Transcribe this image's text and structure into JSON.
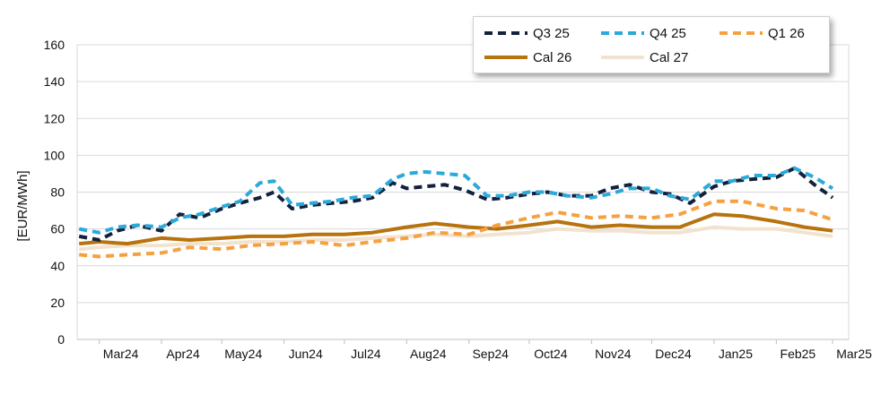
{
  "chart_data": {
    "type": "line",
    "title": "",
    "xlabel": "",
    "ylabel": "[EUR/MWh]",
    "ylim": [
      0,
      160
    ],
    "yticks": [
      0,
      20,
      40,
      60,
      80,
      100,
      120,
      140,
      160
    ],
    "xlim": [
      "2024-02-19",
      "2025-03-09"
    ],
    "xticks": [
      {
        "label": "Mar24",
        "date": "2024-03-01"
      },
      {
        "label": "Apr24",
        "date": "2024-04-01"
      },
      {
        "label": "May24",
        "date": "2024-05-01"
      },
      {
        "label": "Jun24",
        "date": "2024-06-01"
      },
      {
        "label": "Jul24",
        "date": "2024-07-01"
      },
      {
        "label": "Aug24",
        "date": "2024-08-01"
      },
      {
        "label": "Sep24",
        "date": "2024-09-01"
      },
      {
        "label": "Oct24",
        "date": "2024-10-01"
      },
      {
        "label": "Nov24",
        "date": "2024-11-01"
      },
      {
        "label": "Dec24",
        "date": "2024-12-01"
      },
      {
        "label": "Jan25",
        "date": "2025-01-01"
      },
      {
        "label": "Feb25",
        "date": "2025-02-01"
      },
      {
        "label": "Mar25",
        "date": "2025-03-01"
      }
    ],
    "grid": true,
    "legend_position": "top-right",
    "series": [
      {
        "name": "Q3 25",
        "color": "#14213d",
        "style": "dashed",
        "x": [
          "2024-02-20",
          "2024-03-01",
          "2024-03-10",
          "2024-03-20",
          "2024-04-01",
          "2024-04-10",
          "2024-04-20",
          "2024-05-01",
          "2024-05-10",
          "2024-05-20",
          "2024-05-27",
          "2024-06-05",
          "2024-06-15",
          "2024-06-25",
          "2024-07-05",
          "2024-07-15",
          "2024-07-25",
          "2024-08-01",
          "2024-08-10",
          "2024-08-20",
          "2024-08-30",
          "2024-09-10",
          "2024-09-20",
          "2024-10-01",
          "2024-10-10",
          "2024-10-20",
          "2024-11-01",
          "2024-11-10",
          "2024-11-20",
          "2024-12-01",
          "2024-12-10",
          "2024-12-20",
          "2025-01-01",
          "2025-01-10",
          "2025-01-20",
          "2025-02-01",
          "2025-02-10",
          "2025-02-20",
          "2025-03-01"
        ],
        "values": [
          56,
          54,
          59,
          62,
          59,
          68,
          66,
          71,
          74,
          77,
          80,
          71,
          73,
          74,
          75,
          77,
          85,
          82,
          83,
          84,
          81,
          76,
          77,
          79,
          80,
          78,
          78,
          82,
          84,
          80,
          79,
          74,
          83,
          86,
          87,
          88,
          93,
          84,
          77
        ]
      },
      {
        "name": "Q4 25",
        "color": "#2ca9db",
        "style": "dashed",
        "x": [
          "2024-02-20",
          "2024-03-01",
          "2024-03-10",
          "2024-03-20",
          "2024-04-01",
          "2024-04-10",
          "2024-04-20",
          "2024-05-01",
          "2024-05-10",
          "2024-05-20",
          "2024-05-27",
          "2024-06-05",
          "2024-06-15",
          "2024-06-25",
          "2024-07-05",
          "2024-07-15",
          "2024-07-25",
          "2024-08-01",
          "2024-08-10",
          "2024-08-20",
          "2024-08-30",
          "2024-09-10",
          "2024-09-20",
          "2024-10-01",
          "2024-10-10",
          "2024-10-20",
          "2024-11-01",
          "2024-11-10",
          "2024-11-20",
          "2024-12-01",
          "2024-12-10",
          "2024-12-20",
          "2025-01-01",
          "2025-01-10",
          "2025-01-20",
          "2025-02-01",
          "2025-02-10",
          "2025-02-20",
          "2025-03-01"
        ],
        "values": [
          60,
          58,
          61,
          62,
          61,
          66,
          68,
          72,
          75,
          85,
          86,
          73,
          74,
          75,
          77,
          78,
          87,
          90,
          91,
          90,
          89,
          78,
          78,
          80,
          80,
          78,
          77,
          79,
          82,
          82,
          78,
          76,
          86,
          86,
          89,
          89,
          93,
          88,
          82
        ]
      },
      {
        "name": "Q1 26",
        "color": "#f5a142",
        "style": "dashed",
        "x": [
          "2024-02-20",
          "2024-03-01",
          "2024-03-15",
          "2024-04-01",
          "2024-04-15",
          "2024-05-01",
          "2024-05-15",
          "2024-06-01",
          "2024-06-15",
          "2024-07-01",
          "2024-07-15",
          "2024-08-01",
          "2024-08-15",
          "2024-09-01",
          "2024-09-15",
          "2024-10-01",
          "2024-10-15",
          "2024-11-01",
          "2024-11-15",
          "2024-12-01",
          "2024-12-15",
          "2025-01-01",
          "2025-01-15",
          "2025-02-01",
          "2025-02-15",
          "2025-03-01"
        ],
        "values": [
          46,
          45,
          46,
          47,
          50,
          49,
          51,
          52,
          53,
          51,
          53,
          55,
          58,
          57,
          62,
          66,
          69,
          66,
          67,
          66,
          68,
          75,
          75,
          71,
          70,
          65
        ]
      },
      {
        "name": "Cal 26",
        "color": "#b7730e",
        "style": "solid",
        "x": [
          "2024-02-20",
          "2024-03-01",
          "2024-03-15",
          "2024-04-01",
          "2024-04-15",
          "2024-05-01",
          "2024-05-15",
          "2024-06-01",
          "2024-06-15",
          "2024-07-01",
          "2024-07-15",
          "2024-08-01",
          "2024-08-15",
          "2024-09-01",
          "2024-09-15",
          "2024-10-01",
          "2024-10-15",
          "2024-11-01",
          "2024-11-15",
          "2024-12-01",
          "2024-12-15",
          "2025-01-01",
          "2025-01-15",
          "2025-02-01",
          "2025-02-15",
          "2025-03-01"
        ],
        "values": [
          52,
          53,
          52,
          55,
          54,
          55,
          56,
          56,
          57,
          57,
          58,
          61,
          63,
          61,
          60,
          62,
          64,
          61,
          62,
          61,
          61,
          68,
          67,
          64,
          61,
          59
        ]
      },
      {
        "name": "Cal 27",
        "color": "#f2e3d0",
        "style": "solid",
        "x": [
          "2024-02-20",
          "2024-03-01",
          "2024-03-15",
          "2024-04-01",
          "2024-04-15",
          "2024-05-01",
          "2024-05-15",
          "2024-06-01",
          "2024-06-15",
          "2024-07-01",
          "2024-07-15",
          "2024-08-01",
          "2024-08-15",
          "2024-09-01",
          "2024-09-15",
          "2024-10-01",
          "2024-10-15",
          "2024-11-01",
          "2024-11-15",
          "2024-12-01",
          "2024-12-15",
          "2025-01-01",
          "2025-01-15",
          "2025-02-01",
          "2025-02-15",
          "2025-03-01"
        ],
        "values": [
          49,
          50,
          51,
          51,
          52,
          52,
          53,
          53,
          54,
          54,
          55,
          56,
          57,
          56,
          57,
          58,
          60,
          59,
          59,
          58,
          58,
          61,
          60,
          60,
          58,
          56
        ]
      }
    ]
  }
}
